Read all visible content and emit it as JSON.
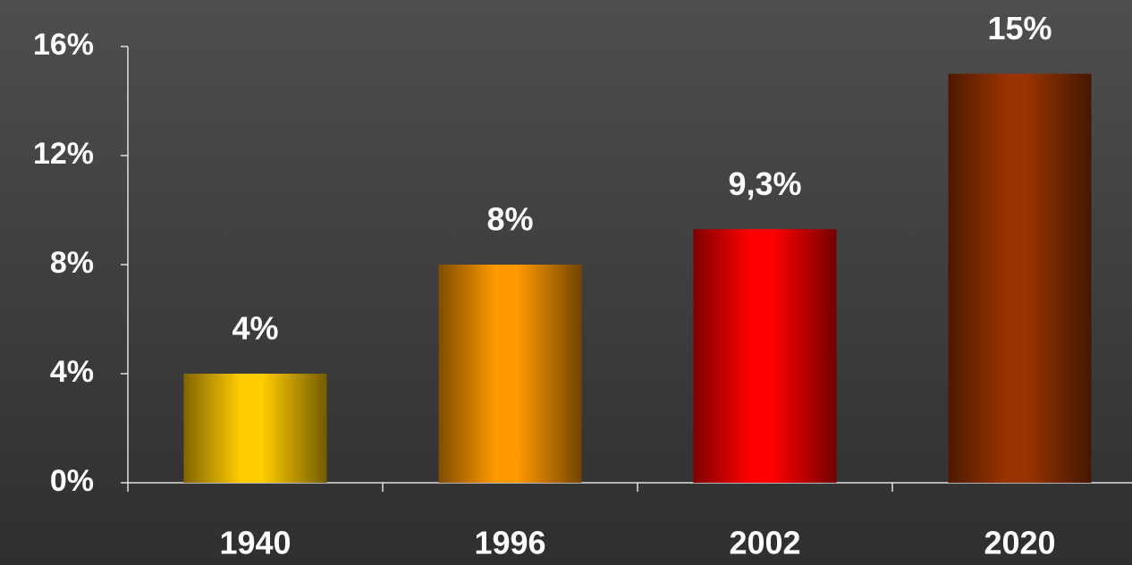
{
  "chart_data": {
    "type": "bar",
    "categories": [
      "1940",
      "1996",
      "2002",
      "2020"
    ],
    "values": [
      4,
      8,
      9.3,
      15
    ],
    "value_labels": [
      "4%",
      "8%",
      "9,3%",
      "15%"
    ],
    "colors": [
      "#ffcc00",
      "#ff9900",
      "#ff0000",
      "#993300"
    ],
    "ylim": [
      0,
      16
    ],
    "yticks": [
      {
        "value": 0,
        "label": "0%"
      },
      {
        "value": 4,
        "label": "4%"
      },
      {
        "value": 8,
        "label": "8%"
      },
      {
        "value": 12,
        "label": "12%"
      },
      {
        "value": 16,
        "label": "16%"
      }
    ],
    "grid": false
  }
}
